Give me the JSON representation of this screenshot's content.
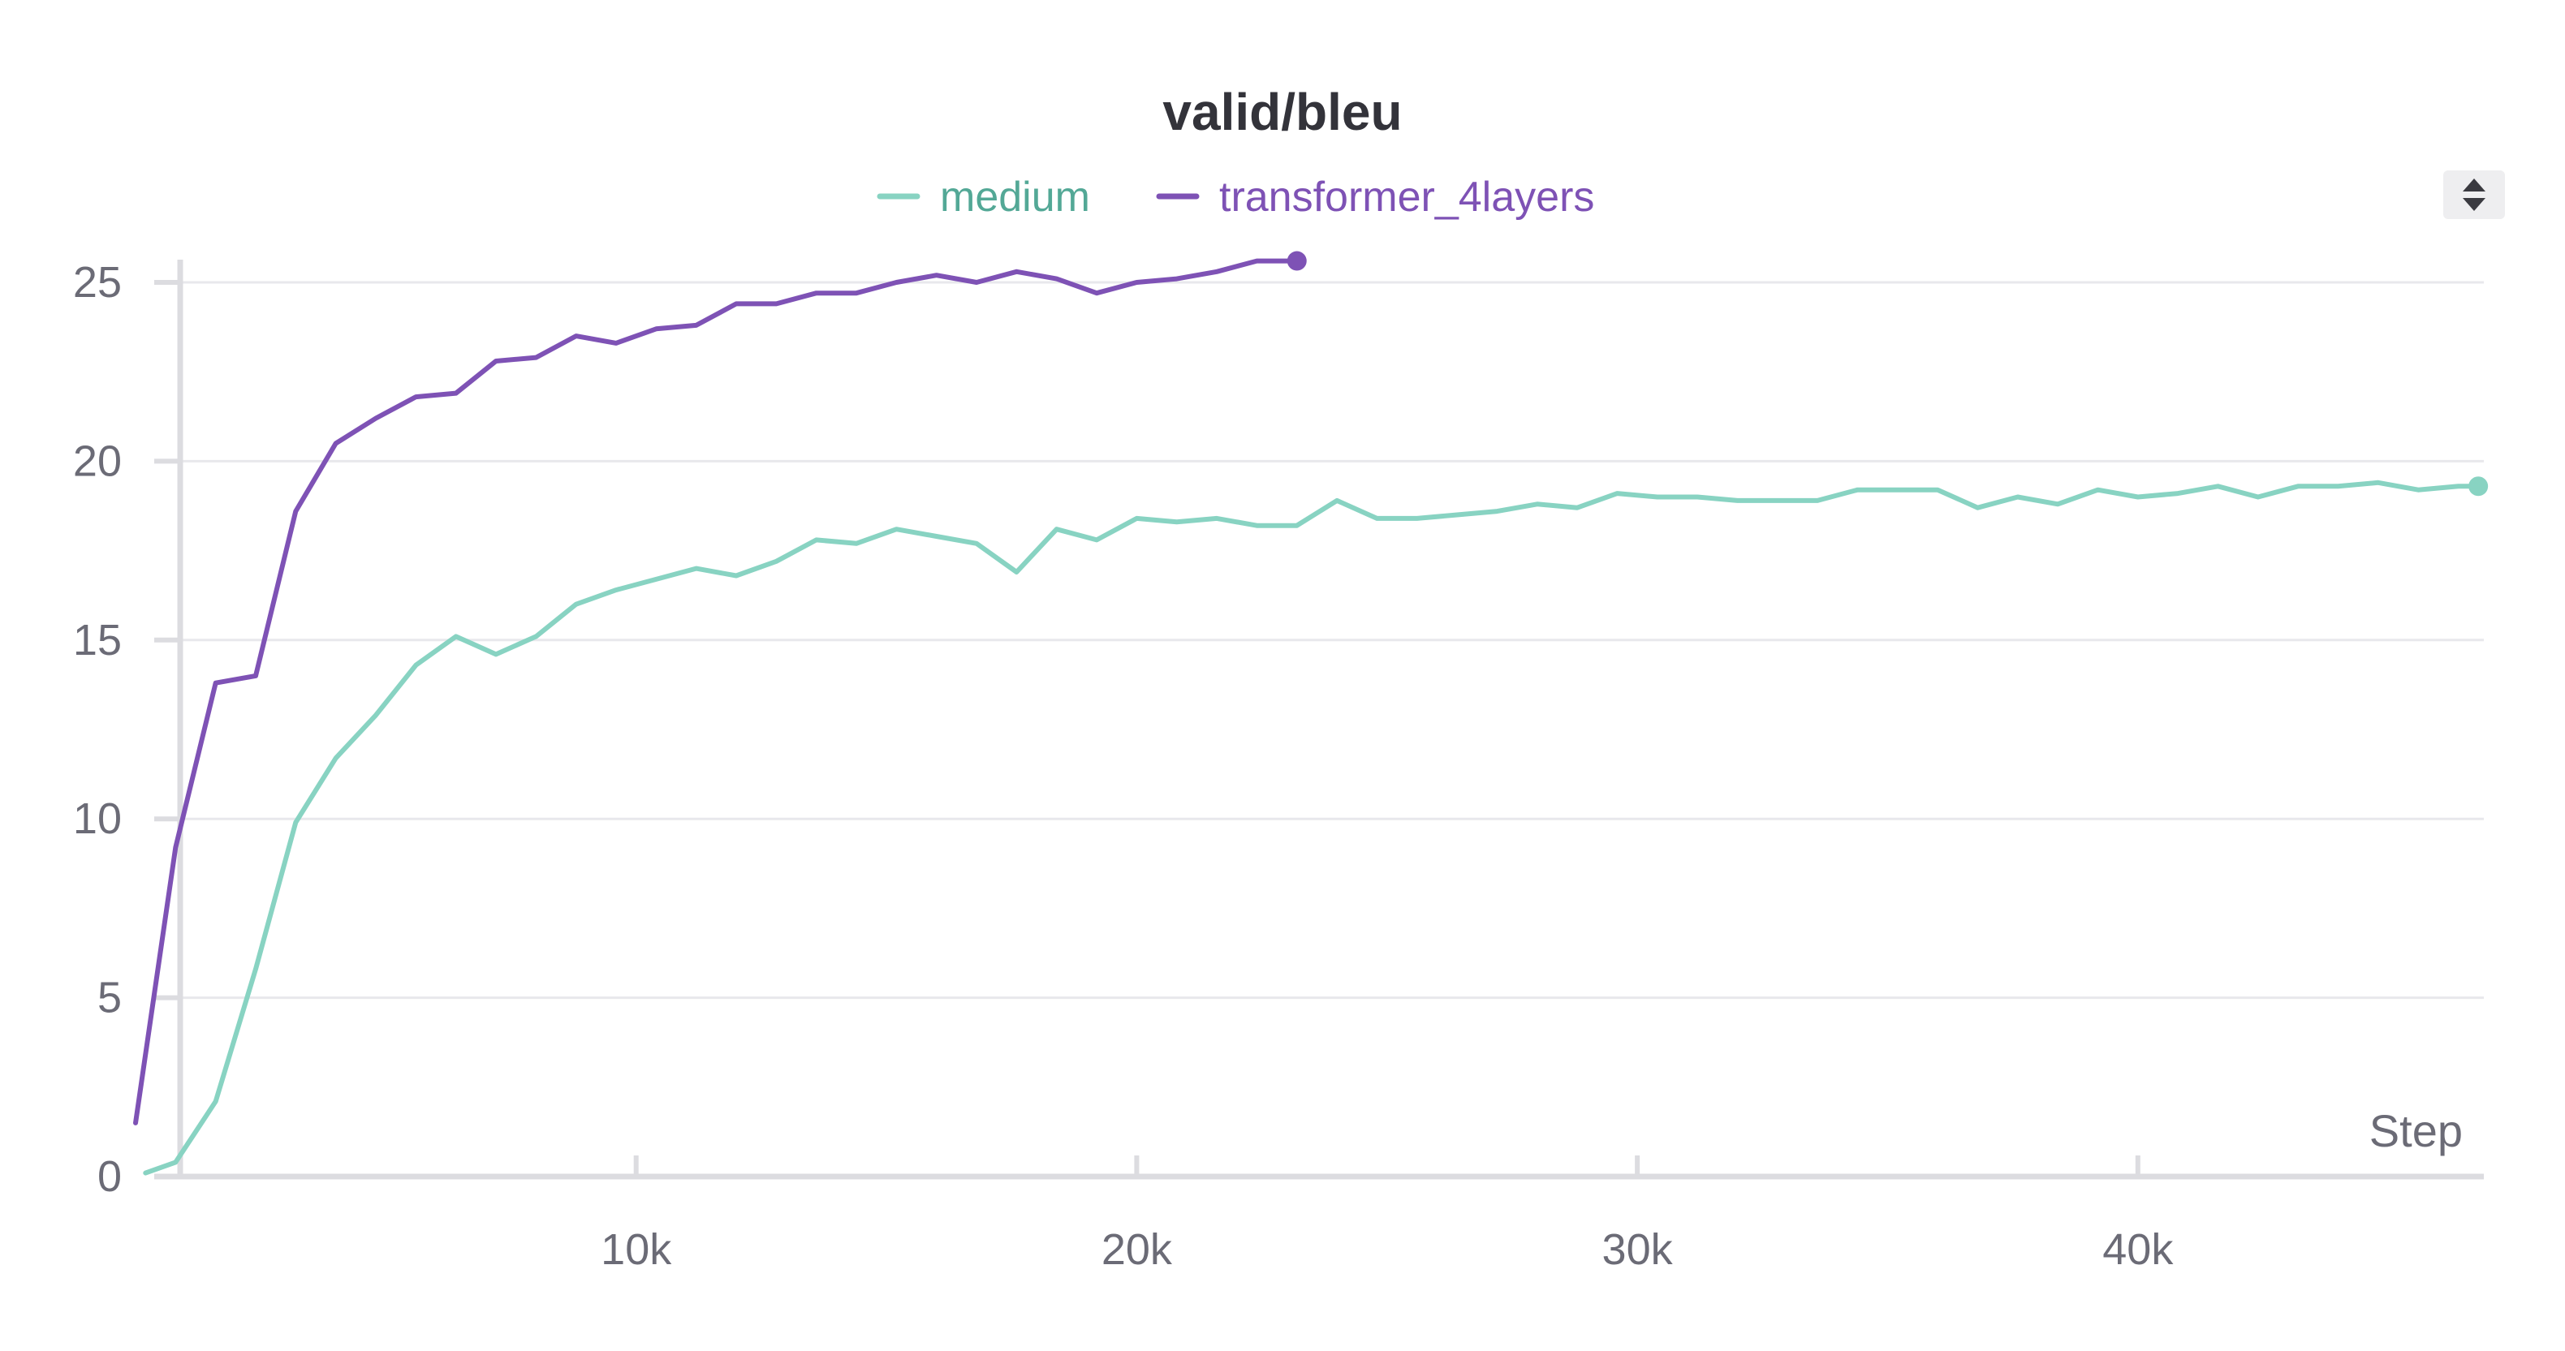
{
  "colors": {
    "medium": "#88d3c2",
    "medium_text": "#53a896",
    "transformer_4layers": "#7e52b5",
    "transformer_4layers_text": "#7e52b5"
  },
  "legend_controls": {
    "sort_icon": "sort-up-down-icon"
  },
  "chart_data": {
    "type": "line",
    "title": "valid/bleu",
    "xlabel": "Step",
    "ylabel": "",
    "xlim": [
      0,
      46800
    ],
    "ylim": [
      0,
      25.6
    ],
    "x_ticks": [
      10000,
      20000,
      30000,
      40000
    ],
    "x_tick_labels": [
      "10k",
      "20k",
      "30k",
      "40k"
    ],
    "y_ticks": [
      0,
      5,
      10,
      15,
      20,
      25
    ],
    "y_tick_labels": [
      "0",
      "5",
      "10",
      "15",
      "20",
      "25"
    ],
    "grid": true,
    "legend": "top-center",
    "series": [
      {
        "name": "medium",
        "x": [
          200,
          800,
          1600,
          2400,
          3200,
          4000,
          4800,
          5600,
          6400,
          7200,
          8000,
          8800,
          9600,
          10400,
          11200,
          12000,
          12800,
          13600,
          14400,
          15200,
          16000,
          16800,
          17600,
          18400,
          19200,
          20000,
          20800,
          21600,
          22400,
          23200,
          24000,
          24800,
          25600,
          26400,
          27200,
          28000,
          28800,
          29600,
          30400,
          31200,
          32000,
          32800,
          33600,
          34400,
          35200,
          36000,
          36800,
          37600,
          38400,
          39200,
          40000,
          40800,
          41600,
          42400,
          43200,
          44000,
          44800,
          45600,
          46400,
          46800
        ],
        "y": [
          0.1,
          0.4,
          2.1,
          5.8,
          9.9,
          11.7,
          12.9,
          14.3,
          15.1,
          14.6,
          15.1,
          16.0,
          16.4,
          16.7,
          17.0,
          16.8,
          17.2,
          17.8,
          17.7,
          18.1,
          17.9,
          17.7,
          16.9,
          18.1,
          17.8,
          18.4,
          18.3,
          18.4,
          18.2,
          18.2,
          18.9,
          18.4,
          18.4,
          18.5,
          18.6,
          18.8,
          18.7,
          19.1,
          19.0,
          19.0,
          18.9,
          18.9,
          18.9,
          19.2,
          19.2,
          19.2,
          18.7,
          19.0,
          18.8,
          19.2,
          19.0,
          19.1,
          19.3,
          19.0,
          19.3,
          19.3,
          19.4,
          19.2,
          19.3,
          19.3
        ]
      },
      {
        "name": "transformer_4layers",
        "x": [
          0,
          800,
          1600,
          2400,
          3200,
          4000,
          4800,
          5600,
          6400,
          7200,
          8000,
          8800,
          9600,
          10400,
          11200,
          12000,
          12800,
          13600,
          14400,
          15200,
          16000,
          16800,
          17600,
          18400,
          19200,
          20000,
          20800,
          21600,
          22400,
          23200
        ],
        "y": [
          1.5,
          9.2,
          13.8,
          14.0,
          18.6,
          20.5,
          21.2,
          21.8,
          21.9,
          22.8,
          22.9,
          23.5,
          23.3,
          23.7,
          23.8,
          24.4,
          24.4,
          24.7,
          24.7,
          25.0,
          25.2,
          25.0,
          25.3,
          25.1,
          24.7,
          25.0,
          25.1,
          25.3,
          25.6,
          25.6
        ]
      }
    ]
  }
}
